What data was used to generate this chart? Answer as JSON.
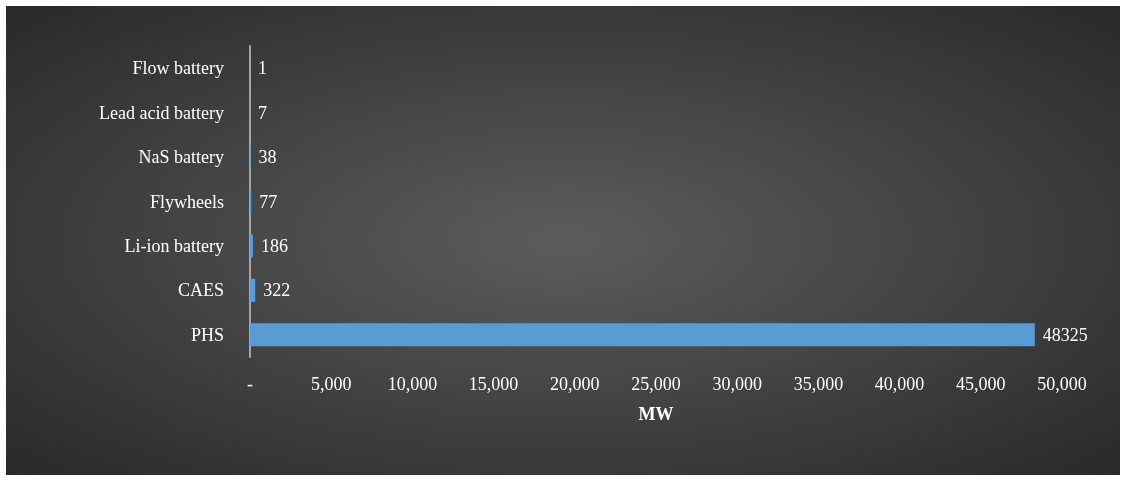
{
  "chart_data": {
    "type": "bar",
    "orientation": "horizontal",
    "xlabel": "MW",
    "categories": [
      "Flow battery",
      "Lead acid battery",
      "NaS battery",
      "Flywheels",
      "Li-ion battery",
      "CAES",
      "PHS"
    ],
    "values": [
      1,
      7,
      38,
      77,
      186,
      322,
      48325
    ],
    "color": "#5b9bd5",
    "xlim": [
      0,
      50000
    ],
    "xticks": [
      {
        "value": 0,
        "label": "-"
      },
      {
        "value": 5000,
        "label": "5,000"
      },
      {
        "value": 10000,
        "label": "10,000"
      },
      {
        "value": 15000,
        "label": "15,000"
      },
      {
        "value": 20000,
        "label": "20,000"
      },
      {
        "value": 25000,
        "label": "25,000"
      },
      {
        "value": 30000,
        "label": "30,000"
      },
      {
        "value": 35000,
        "label": "35,000"
      },
      {
        "value": 40000,
        "label": "40,000"
      },
      {
        "value": 45000,
        "label": "45,000"
      },
      {
        "value": 50000,
        "label": "50,000"
      }
    ],
    "data_labels": true
  }
}
